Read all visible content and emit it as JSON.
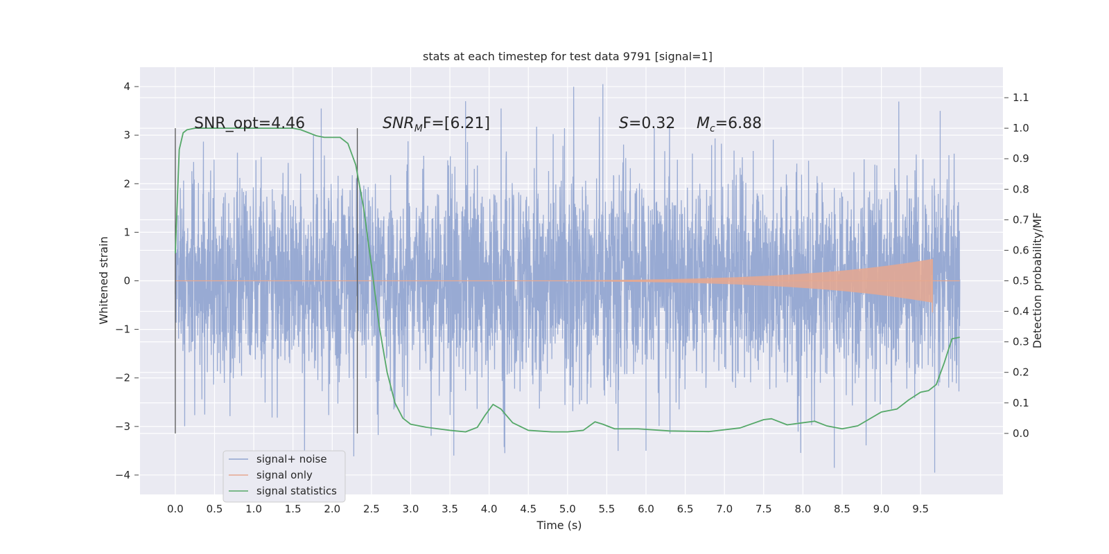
{
  "chart_data": {
    "type": "line",
    "title": "stats at each timestep for test data 9791 [signal=1]",
    "xlabel": "Time (s)",
    "ylabel": "Whitened strain",
    "y2label": "Detection probability/MF",
    "grid": true,
    "xlim": [
      -0.45,
      10.55
    ],
    "ylim": [
      -4.4,
      4.4
    ],
    "y2lim": [
      -0.2,
      1.2
    ],
    "x_ticks": [
      "0.0",
      "0.5",
      "1.0",
      "1.5",
      "2.0",
      "2.5",
      "3.0",
      "3.5",
      "4.0",
      "4.5",
      "5.0",
      "5.5",
      "6.0",
      "6.5",
      "7.0",
      "7.5",
      "8.0",
      "8.5",
      "9.0",
      "9.5"
    ],
    "y_ticks": [
      "4",
      "3",
      "2",
      "1",
      "0",
      "−1",
      "−2",
      "−3",
      "−4"
    ],
    "y2_ticks": [
      "1.1",
      "1.0",
      "0.9",
      "0.8",
      "0.7",
      "0.6",
      "0.5",
      "0.4",
      "0.3",
      "0.2",
      "0.1",
      "0.0"
    ],
    "legend": {
      "placement": "lower-left",
      "entries": [
        {
          "name": "signal+ noise",
          "color": "#8fa3cf"
        },
        {
          "name": "signal only",
          "color": "#e6a88f"
        },
        {
          "name": "signal statistics",
          "color": "#55a868"
        }
      ]
    },
    "annotations": {
      "snr_opt": "SNR_opt=4.46",
      "snr_mf_sym": "SNR",
      "snr_mf_sub": "M",
      "snr_mf_rest": "F=[6.21]",
      "s_sym": "S",
      "s_val": "=0.32",
      "mc_sym": "M",
      "mc_sub": "c",
      "mc_val": "=6.88"
    },
    "vertical_lines_x": [
      0.0,
      2.32
    ],
    "noise": {
      "x_range": [
        0.0,
        10.0
      ],
      "core_band": [
        -1.3,
        1.3
      ],
      "typical_peak": [
        -2.2,
        2.1
      ],
      "max": 4.05,
      "min": -3.95
    },
    "signal_only": {
      "x_range": [
        0.0,
        9.65
      ],
      "amplitude_start": 0.0,
      "amplitude_end": 0.45
    },
    "series": [
      {
        "name": "signal statistics",
        "axis": "right",
        "color": "#55a868",
        "x": [
          0.0,
          0.05,
          0.1,
          0.15,
          0.25,
          0.5,
          1.0,
          1.5,
          1.6,
          1.7,
          1.8,
          1.9,
          2.0,
          2.1,
          2.2,
          2.3,
          2.4,
          2.5,
          2.6,
          2.7,
          2.8,
          2.9,
          3.0,
          3.2,
          3.5,
          3.7,
          3.85,
          3.95,
          4.05,
          4.15,
          4.3,
          4.5,
          4.8,
          5.0,
          5.2,
          5.35,
          5.45,
          5.6,
          5.9,
          6.3,
          6.8,
          7.2,
          7.5,
          7.6,
          7.8,
          8.0,
          8.15,
          8.3,
          8.5,
          8.7,
          8.9,
          9.0,
          9.2,
          9.35,
          9.5,
          9.6,
          9.7,
          9.8,
          9.9,
          10.0
        ],
        "values": [
          0.59,
          0.93,
          0.985,
          0.995,
          1.0,
          1.0,
          1.0,
          1.0,
          0.995,
          0.985,
          0.975,
          0.97,
          0.97,
          0.97,
          0.95,
          0.88,
          0.74,
          0.55,
          0.35,
          0.2,
          0.1,
          0.05,
          0.03,
          0.02,
          0.01,
          0.005,
          0.02,
          0.06,
          0.095,
          0.08,
          0.035,
          0.01,
          0.005,
          0.005,
          0.01,
          0.038,
          0.03,
          0.015,
          0.015,
          0.008,
          0.006,
          0.018,
          0.045,
          0.048,
          0.028,
          0.035,
          0.04,
          0.025,
          0.015,
          0.025,
          0.055,
          0.07,
          0.08,
          0.11,
          0.135,
          0.14,
          0.16,
          0.23,
          0.31,
          0.315
        ]
      }
    ]
  }
}
